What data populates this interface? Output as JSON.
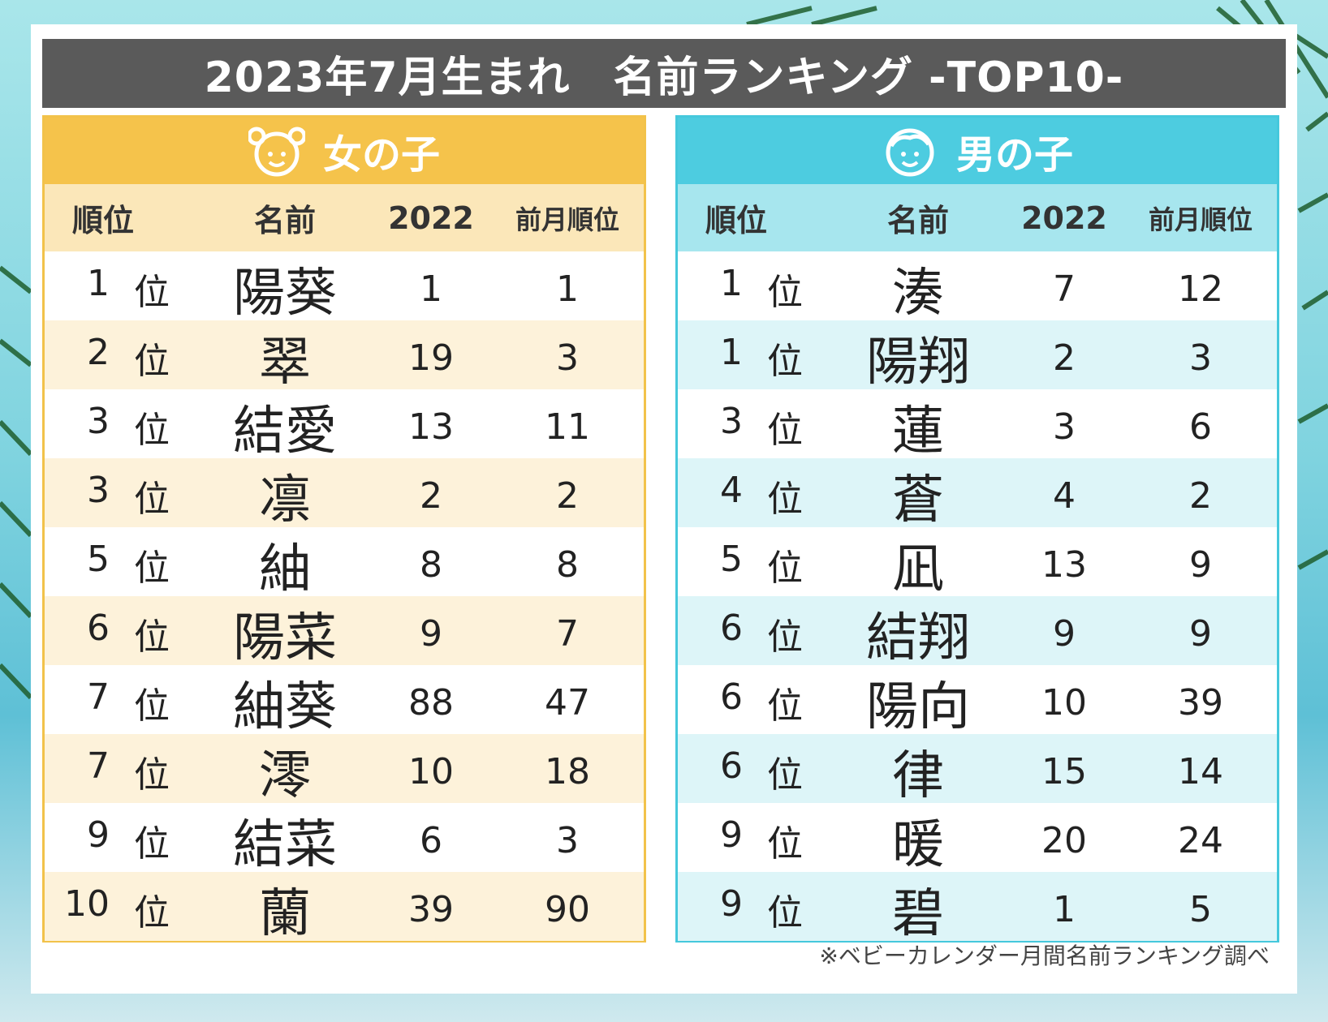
{
  "title": "2023年7月生まれ　名前ランキング -TOP10-",
  "columns": {
    "rank": "順位",
    "name": "名前",
    "year": "2022",
    "prev": "前月順位"
  },
  "rank_suffix": "位",
  "girls": {
    "label": "女の子",
    "accent": "#f5c34b",
    "rows": [
      {
        "rank": "1",
        "name": "陽葵",
        "y2022": "1",
        "prev": "1"
      },
      {
        "rank": "2",
        "name": "翠",
        "y2022": "19",
        "prev": "3"
      },
      {
        "rank": "3",
        "name": "結愛",
        "y2022": "13",
        "prev": "11"
      },
      {
        "rank": "3",
        "name": "凛",
        "y2022": "2",
        "prev": "2"
      },
      {
        "rank": "5",
        "name": "紬",
        "y2022": "8",
        "prev": "8"
      },
      {
        "rank": "6",
        "name": "陽菜",
        "y2022": "9",
        "prev": "7"
      },
      {
        "rank": "7",
        "name": "紬葵",
        "y2022": "88",
        "prev": "47"
      },
      {
        "rank": "7",
        "name": "澪",
        "y2022": "10",
        "prev": "18"
      },
      {
        "rank": "9",
        "name": "結菜",
        "y2022": "6",
        "prev": "3"
      },
      {
        "rank": "10",
        "name": "蘭",
        "y2022": "39",
        "prev": "90"
      }
    ]
  },
  "boys": {
    "label": "男の子",
    "accent": "#4dcce0",
    "rows": [
      {
        "rank": "1",
        "name": "湊",
        "y2022": "7",
        "prev": "12"
      },
      {
        "rank": "1",
        "name": "陽翔",
        "y2022": "2",
        "prev": "3"
      },
      {
        "rank": "3",
        "name": "蓮",
        "y2022": "3",
        "prev": "6"
      },
      {
        "rank": "4",
        "name": "蒼",
        "y2022": "4",
        "prev": "2"
      },
      {
        "rank": "5",
        "name": "凪",
        "y2022": "13",
        "prev": "9"
      },
      {
        "rank": "6",
        "name": "結翔",
        "y2022": "9",
        "prev": "9"
      },
      {
        "rank": "6",
        "name": "陽向",
        "y2022": "10",
        "prev": "39"
      },
      {
        "rank": "6",
        "name": "律",
        "y2022": "15",
        "prev": "14"
      },
      {
        "rank": "9",
        "name": "暖",
        "y2022": "20",
        "prev": "24"
      },
      {
        "rank": "9",
        "name": "碧",
        "y2022": "1",
        "prev": "5"
      }
    ]
  },
  "footnote": "※ベビーカレンダー月間名前ランキング調べ"
}
